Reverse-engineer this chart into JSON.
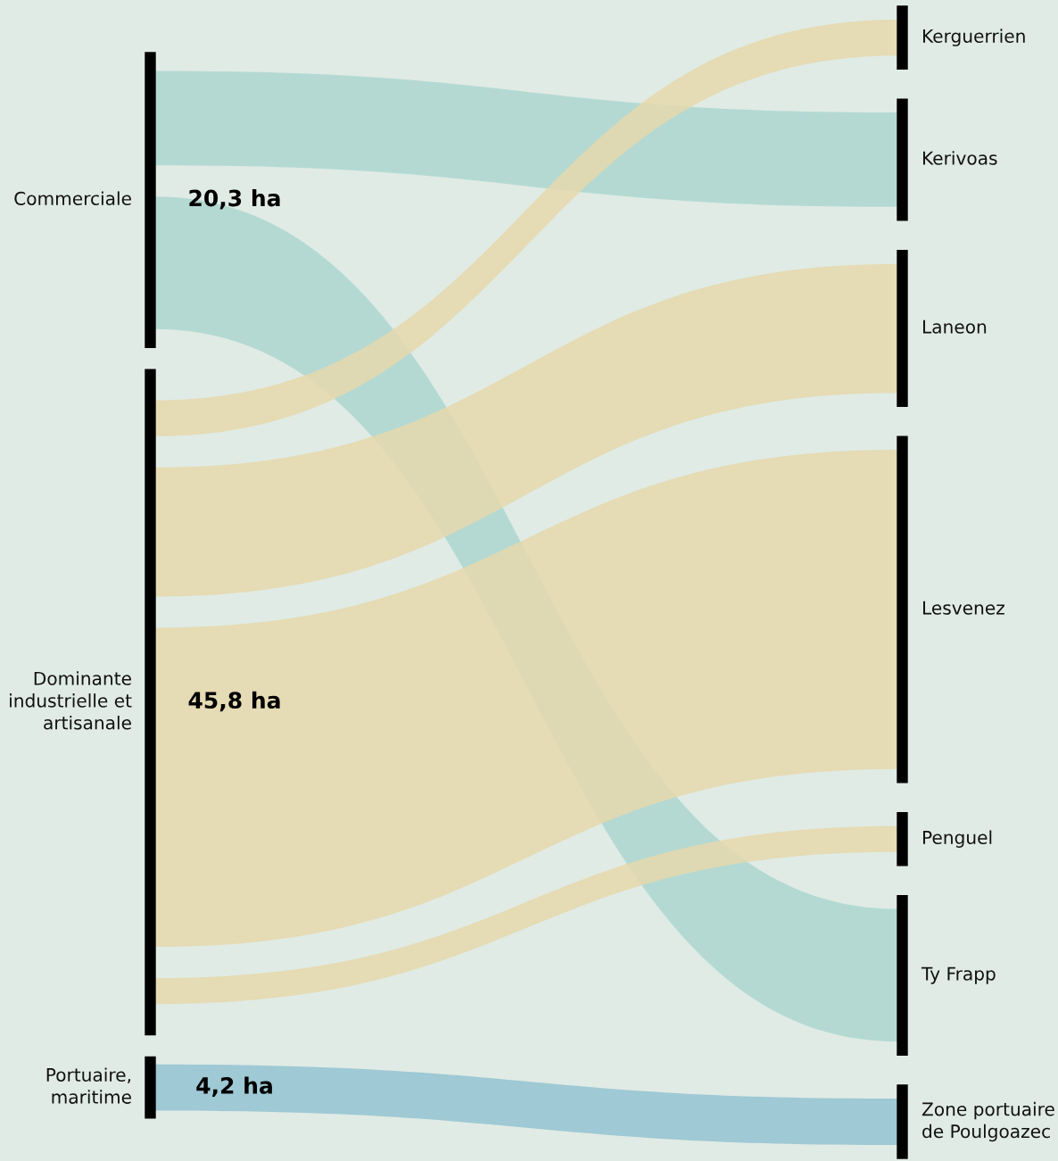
{
  "chart_data": {
    "type": "other",
    "categories": [
      "Commerciale",
      "Dominante\nindustrielle et\nartisanale",
      "Portuaire,\nmaritime"
    ],
    "values": [
      20.3,
      45.8,
      4.2
    ],
    "value_labels": [
      "20,3 ha",
      "45,8 ha",
      "4,2 ha"
    ],
    "colors": [
      "#acd6d0",
      "#e5d8ac",
      "#93c3d1"
    ],
    "y2_categories": [
      "Kerguerrien",
      "Kerivoas",
      "Laneon",
      "Lesvenez",
      "Penguel",
      "Ty Frapp",
      "Zone portuaire\nde Poulgoazec"
    ]
  }
}
